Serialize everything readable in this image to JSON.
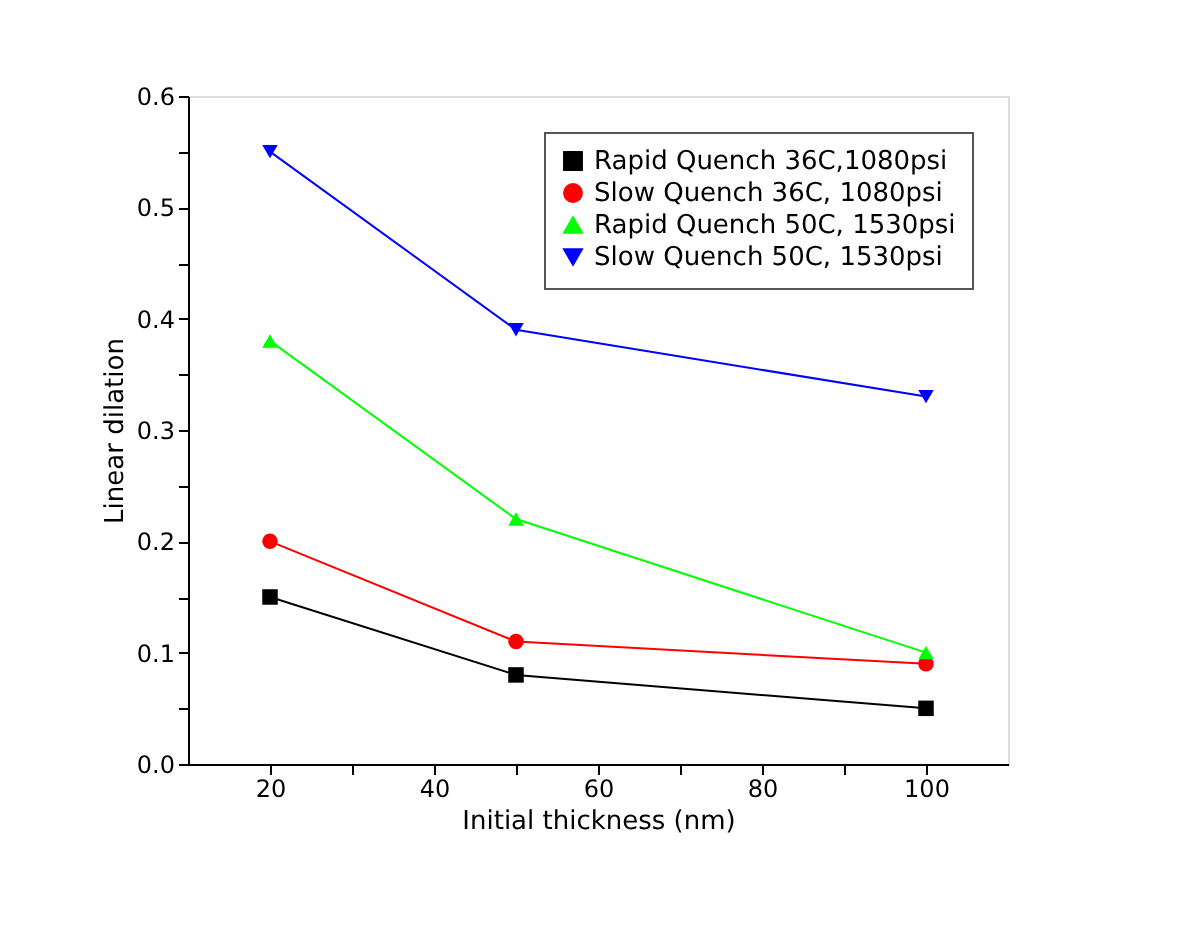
{
  "chart_data": {
    "type": "line",
    "xlabel": "Initial thickness (nm)",
    "ylabel": "Linear dilation",
    "x": [
      20,
      50,
      100
    ],
    "series": [
      {
        "name": "Rapid Quench 36C,1080psi",
        "color": "#000000",
        "marker": "square",
        "values": [
          0.15,
          0.08,
          0.05
        ]
      },
      {
        "name": "Slow Quench 36C, 1080psi",
        "color": "#ff0000",
        "marker": "circle",
        "values": [
          0.2,
          0.11,
          0.09
        ]
      },
      {
        "name": "Rapid Quench 50C, 1530psi",
        "color": "#00ff00",
        "marker": "triangle",
        "values": [
          0.38,
          0.22,
          0.1
        ]
      },
      {
        "name": "Slow Quench 50C, 1530psi",
        "color": "#0000ff",
        "marker": "triangle-down",
        "values": [
          0.55,
          0.39,
          0.33
        ]
      }
    ],
    "xlim": [
      10,
      110
    ],
    "xticks": [
      20,
      {
        "value": 30,
        "label": null
      },
      40,
      {
        "value": 50,
        "label": null
      },
      60,
      {
        "value": 70,
        "label": null
      },
      80,
      {
        "value": 90,
        "label": null
      },
      100
    ],
    "ylim": [
      0,
      0.6
    ],
    "yticks": [
      {
        "value": 0,
        "label": "0.0"
      },
      {
        "value": 0.05,
        "label": null
      },
      0.1,
      {
        "value": 0.15,
        "label": null
      },
      0.2,
      {
        "value": 0.25,
        "label": null
      },
      0.3,
      {
        "value": 0.35,
        "label": null
      },
      0.4,
      {
        "value": 0.45,
        "label": null
      },
      0.5,
      {
        "value": 0.55,
        "label": null
      },
      0.6
    ],
    "grid": false,
    "legend": "top right",
    "line_style": "solid"
  }
}
